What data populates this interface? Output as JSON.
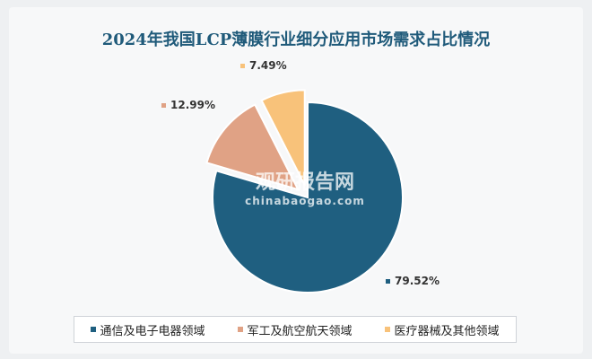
{
  "chart_data": {
    "type": "pie",
    "title": "2024年我国LCP薄膜行业细分应用市场需求占比情况",
    "categories": [
      "通信及电子电器领域",
      "军工及航空航天领域",
      "医疗器械及其他领域"
    ],
    "values": [
      79.52,
      12.99,
      7.49
    ],
    "labels": [
      "79.52%",
      "12.99%",
      "7.49%"
    ],
    "colors": [
      "#1f5f80",
      "#e0a285",
      "#f8c27a"
    ],
    "legend_position": "bottom"
  },
  "watermark": {
    "name": "观研报告网",
    "url": "chinabaogao.com"
  }
}
